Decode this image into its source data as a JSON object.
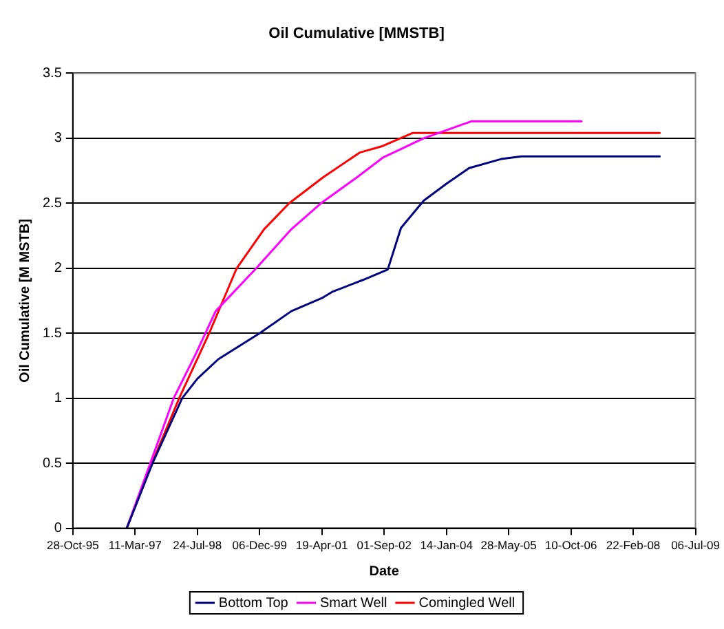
{
  "chart_data": {
    "type": "line",
    "title": "Oil Cumulative [MMSTB]",
    "xlabel": "Date",
    "ylabel": "Oil Cumulative [M MSTB]",
    "xlim": [
      "1995-10-28",
      "2009-07-06"
    ],
    "xticks": [
      {
        "value": "1995-10-28",
        "label": "28-Oct-95"
      },
      {
        "value": "1997-03-11",
        "label": "11-Mar-97"
      },
      {
        "value": "1998-07-24",
        "label": "24-Jul-98"
      },
      {
        "value": "1999-12-06",
        "label": "06-Dec-99"
      },
      {
        "value": "2001-04-19",
        "label": "19-Apr-01"
      },
      {
        "value": "2002-09-01",
        "label": "01-Sep-02"
      },
      {
        "value": "2004-01-14",
        "label": "14-Jan-04"
      },
      {
        "value": "2005-05-28",
        "label": "28-May-05"
      },
      {
        "value": "2006-10-10",
        "label": "10-Oct-06"
      },
      {
        "value": "2008-02-22",
        "label": "22-Feb-08"
      },
      {
        "value": "2009-07-06",
        "label": "06-Jul-09"
      }
    ],
    "ylim": [
      0,
      3.5
    ],
    "yticks": [
      0,
      0.5,
      1,
      1.5,
      2,
      2.5,
      3,
      3.5
    ],
    "grid": "y",
    "legend": "bottom",
    "marker": "none",
    "line_style": "solid",
    "series": [
      {
        "name": "Bottom Top",
        "color": "#000080",
        "x": [
          "1997-01-03",
          "1997-07-29",
          "1998-03-24",
          "1998-07-24",
          "1999-01-08",
          "1999-12-06",
          "2000-08-17",
          "2001-04-19",
          "2001-07-14",
          "2002-03-15",
          "2002-09-30",
          "2003-01-14",
          "2003-07-16",
          "2004-01-14",
          "2004-07-14",
          "2005-03-28",
          "2005-09-08",
          "2008-09-22"
        ],
        "values": [
          0,
          0.5,
          1.0,
          1.15,
          1.3,
          1.5,
          1.67,
          1.77,
          1.82,
          1.91,
          1.99,
          2.31,
          2.52,
          2.65,
          2.77,
          2.84,
          2.86,
          2.86
        ]
      },
      {
        "name": "Smart Well",
        "color": "#ff00ff",
        "x": [
          "1997-01-03",
          "1997-07-11",
          "1998-01-15",
          "1998-07-16",
          "1998-12-18",
          "1999-11-09",
          "2000-08-17",
          "2001-04-12",
          "2002-01-27",
          "2002-08-20",
          "2003-07-16",
          "2004-07-31",
          "2007-01-03"
        ],
        "values": [
          0,
          0.5,
          1.0,
          1.35,
          1.67,
          2.0,
          2.3,
          2.5,
          2.7,
          2.85,
          3.0,
          3.13,
          3.13
        ]
      },
      {
        "name": "Comingled Well",
        "color": "#ff0000",
        "x": [
          "1997-01-03",
          "1997-07-29",
          "1998-02-28",
          "1998-10-27",
          "1999-06-05",
          "2000-01-11",
          "2000-07-31",
          "2001-04-30",
          "2002-02-17",
          "2002-08-20",
          "2003-04-16",
          "2008-09-22"
        ],
        "values": [
          0,
          0.51,
          1.0,
          1.5,
          2.0,
          2.3,
          2.5,
          2.7,
          2.89,
          2.94,
          3.04,
          3.04
        ]
      }
    ]
  }
}
